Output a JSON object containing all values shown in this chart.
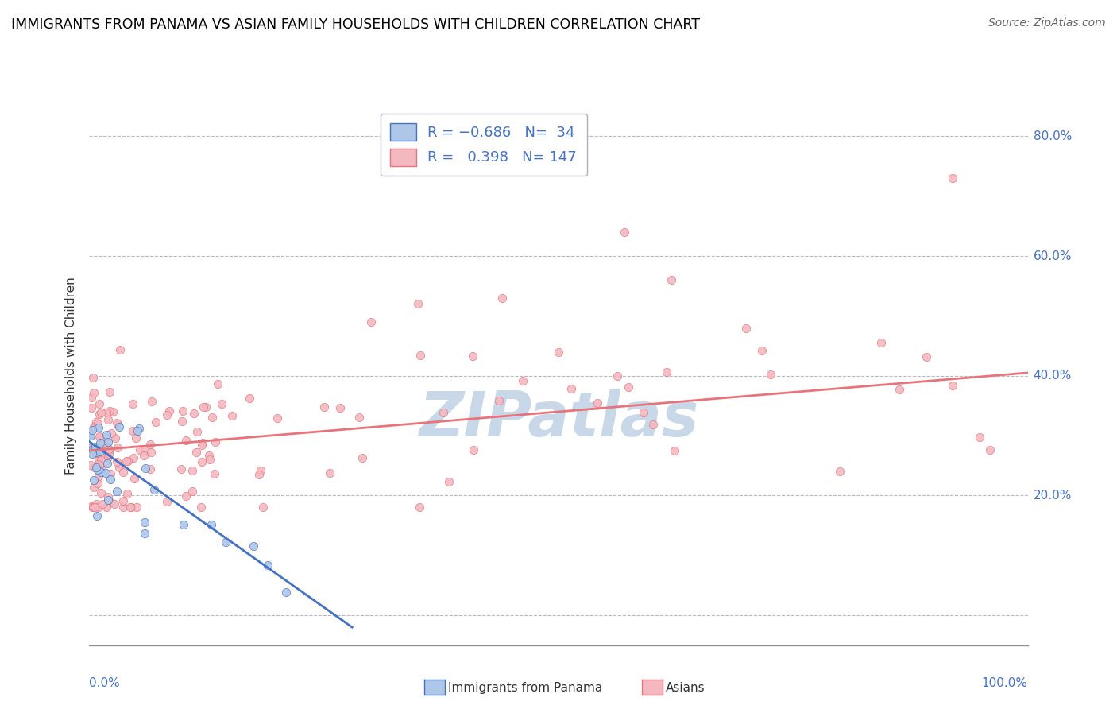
{
  "title": "IMMIGRANTS FROM PANAMA VS ASIAN FAMILY HOUSEHOLDS WITH CHILDREN CORRELATION CHART",
  "source": "Source: ZipAtlas.com",
  "ylabel": "Family Households with Children",
  "ytick_vals": [
    0.0,
    0.2,
    0.4,
    0.6,
    0.8
  ],
  "ytick_labels": [
    "",
    "20.0%",
    "40.0%",
    "60.0%",
    "80.0%"
  ],
  "legend_entries": [
    {
      "label": "Immigrants from Panama",
      "R": -0.686,
      "N": 34,
      "color": "#aec6e8",
      "line_color": "#4472c4"
    },
    {
      "label": "Asians",
      "R": 0.398,
      "N": 147,
      "color": "#f4b8c1",
      "line_color": "#e8737a"
    }
  ],
  "watermark": "ZIPatlas",
  "watermark_color": "#c8d8e8",
  "background_color": "#ffffff",
  "grid_color": "#b8b8c8",
  "title_color": "#000000",
  "title_fontsize": 12.5,
  "axis_label_color": "#4472c4",
  "xlim": [
    0.0,
    1.0
  ],
  "ylim": [
    -0.05,
    0.85
  ],
  "blue_trend_x": [
    0.0,
    0.28
  ],
  "blue_trend_y": [
    0.29,
    -0.02
  ],
  "pink_trend_x": [
    0.0,
    1.0
  ],
  "pink_trend_y": [
    0.275,
    0.405
  ]
}
